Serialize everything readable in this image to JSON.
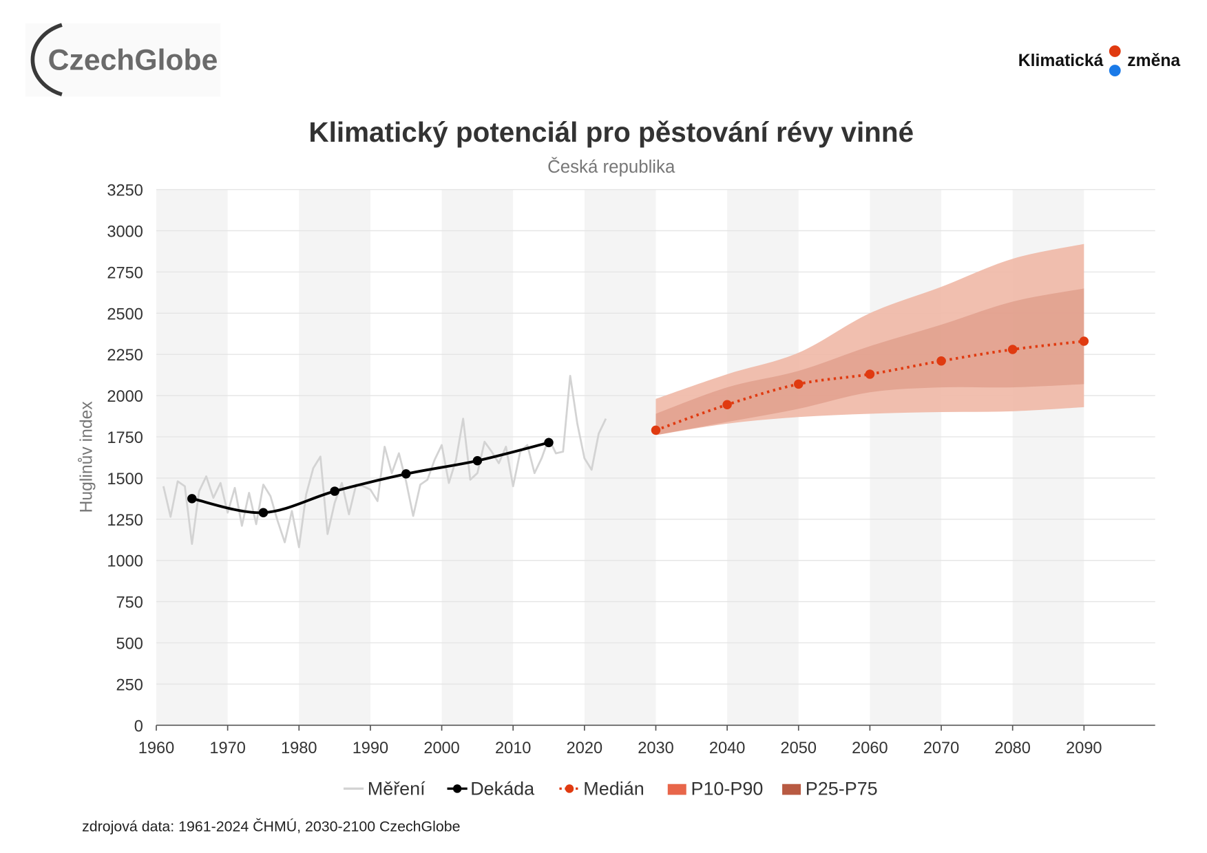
{
  "header": {
    "left_logo_text": "CzechGlobe",
    "right_logo_text_1": "Klimatická",
    "right_logo_text_2": "změna"
  },
  "source_note": "zdrojová data: 1961-2024 ČHMÚ, 2030-2100 CzechGlobe",
  "colors": {
    "measured": "#d3d3d3",
    "decade": "#000000",
    "median": "#e03a10",
    "p10_p90_band": "#efb8a6",
    "p25_p75_band": "#d9907c",
    "p10_p90_legend": "#e8664a",
    "p25_p75_legend": "#b85a42",
    "drop_red": "#e03a10",
    "drop_blue": "#1a7ae8"
  },
  "chart_data": {
    "type": "line",
    "title": "Klimatický potenciál pro pěstování révy vinné",
    "subtitle": "Česká republika",
    "xlabel": "",
    "ylabel": "Huglinův index",
    "xlim": [
      1960,
      2100
    ],
    "ylim": [
      0,
      3250
    ],
    "x_ticks": [
      "1960",
      "1970",
      "1980",
      "1990",
      "2000",
      "2010",
      "2020",
      "2030",
      "2040",
      "2050",
      "2060",
      "2070",
      "2080",
      "2090"
    ],
    "y_ticks": [
      "0",
      "250",
      "500",
      "750",
      "1000",
      "1250",
      "1500",
      "1750",
      "2000",
      "2250",
      "2500",
      "2750",
      "3000",
      "3250"
    ],
    "grid": true,
    "legend_position": "bottom",
    "legend": [
      "Měření",
      "Dekáda",
      "Medián",
      "P10-P90",
      "P25-P75"
    ],
    "series": [
      {
        "name": "Měření",
        "x": [
          1961,
          1962,
          1963,
          1964,
          1965,
          1966,
          1967,
          1968,
          1969,
          1970,
          1971,
          1972,
          1973,
          1974,
          1975,
          1976,
          1977,
          1978,
          1979,
          1980,
          1981,
          1982,
          1983,
          1984,
          1985,
          1986,
          1987,
          1988,
          1989,
          1990,
          1991,
          1992,
          1993,
          1994,
          1995,
          1996,
          1997,
          1998,
          1999,
          2000,
          2001,
          2002,
          2003,
          2004,
          2005,
          2006,
          2007,
          2008,
          2009,
          2010,
          2011,
          2012,
          2013,
          2014,
          2015,
          2016,
          2017,
          2018,
          2019,
          2020,
          2021,
          2022,
          2023
        ],
        "values": [
          1450,
          1265,
          1480,
          1450,
          1100,
          1420,
          1510,
          1380,
          1470,
          1290,
          1440,
          1210,
          1410,
          1220,
          1460,
          1390,
          1240,
          1110,
          1300,
          1080,
          1400,
          1560,
          1630,
          1160,
          1350,
          1470,
          1280,
          1460,
          1450,
          1430,
          1360,
          1690,
          1530,
          1650,
          1480,
          1270,
          1460,
          1490,
          1610,
          1700,
          1470,
          1610,
          1860,
          1490,
          1530,
          1720,
          1660,
          1590,
          1690,
          1450,
          1660,
          1700,
          1530,
          1620,
          1740,
          1650,
          1660,
          2120,
          1830,
          1620,
          1550,
          1770,
          1860
        ]
      },
      {
        "name": "Dekáda",
        "x": [
          1965,
          1975,
          1985,
          1995,
          2005,
          2015
        ],
        "values": [
          1375,
          1290,
          1420,
          1525,
          1605,
          1715
        ]
      },
      {
        "name": "Medián",
        "x": [
          2030,
          2040,
          2050,
          2060,
          2070,
          2080,
          2090
        ],
        "values": [
          1790,
          1945,
          2070,
          2130,
          2210,
          2280,
          2330
        ]
      },
      {
        "name": "P10-P90",
        "x": [
          2030,
          2040,
          2050,
          2060,
          2070,
          2080,
          2090
        ],
        "low": [
          1760,
          1830,
          1870,
          1890,
          1900,
          1905,
          1930
        ],
        "high": [
          1980,
          2130,
          2260,
          2500,
          2660,
          2830,
          2920
        ]
      },
      {
        "name": "P25-P75",
        "x": [
          2030,
          2040,
          2050,
          2060,
          2070,
          2080,
          2090
        ],
        "low": [
          1760,
          1840,
          1920,
          2020,
          2050,
          2050,
          2070
        ],
        "high": [
          1890,
          2050,
          2150,
          2300,
          2430,
          2570,
          2650
        ]
      }
    ]
  }
}
